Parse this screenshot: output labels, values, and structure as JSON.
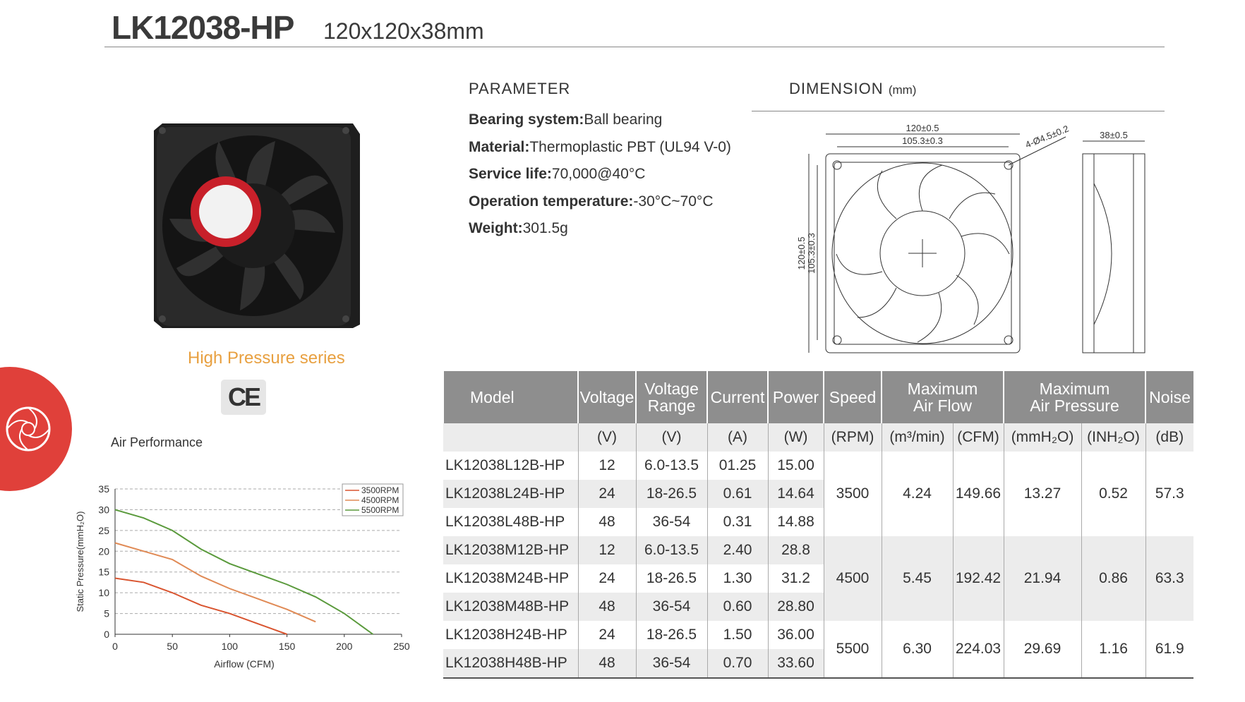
{
  "header": {
    "title": "LK12038-HP",
    "size": "120x120x38mm"
  },
  "series_name": "High Pressure series",
  "certification": "CE",
  "parameter": {
    "heading": "PARAMETER",
    "items": [
      {
        "label": "Bearing system:",
        "value": "Ball bearing"
      },
      {
        "label": "Material:",
        "value": "Thermoplastic PBT (UL94 V-0)"
      },
      {
        "label": "Service life:",
        "value": "70,000@40°C"
      },
      {
        "label": "Operation temperature:",
        "value": "-30°C~70°C"
      },
      {
        "label": "Weight:",
        "value": "301.5g"
      }
    ]
  },
  "dimension": {
    "heading": "DIMENSION",
    "unit": "(mm)",
    "outer": "120±0.5",
    "hole_pitch": "105.3±0.3",
    "holes": "4-Ø4.5±0.2",
    "depth": "38±0.5"
  },
  "table": {
    "header": [
      [
        "Model"
      ],
      [
        "Voltage"
      ],
      [
        "Voltage",
        "Range"
      ],
      [
        "Current"
      ],
      [
        "Power"
      ],
      [
        "Speed"
      ],
      [
        "Maximum",
        "Air Flow"
      ],
      [
        "Maximum",
        "Air Pressure"
      ],
      [
        "Noise"
      ]
    ],
    "units": [
      "(V)",
      "(V)",
      "(A)",
      "(W)",
      "(RPM)",
      "(m³/min)",
      "(CFM)",
      "(mmH₂O)",
      "(INH₂O)",
      "(dB)"
    ],
    "groups": [
      {
        "speed": "3500",
        "airflow_m3": "4.24",
        "airflow_cfm": "149.66",
        "pressure_mmh2o": "13.27",
        "pressure_inh2o": "0.52",
        "noise": "57.3",
        "rows": [
          [
            "LK12038L12B-HP",
            "12",
            "6.0-13.5",
            "01.25",
            "15.00"
          ],
          [
            "LK12038L24B-HP",
            "24",
            "18-26.5",
            "0.61",
            "14.64"
          ],
          [
            "LK12038L48B-HP",
            "48",
            "36-54",
            "0.31",
            "14.88"
          ]
        ]
      },
      {
        "speed": "4500",
        "airflow_m3": "5.45",
        "airflow_cfm": "192.42",
        "pressure_mmh2o": "21.94",
        "pressure_inh2o": "0.86",
        "noise": "63.3",
        "rows": [
          [
            "LK12038M12B-HP",
            "12",
            "6.0-13.5",
            "2.40",
            "28.8"
          ],
          [
            "LK12038M24B-HP",
            "24",
            "18-26.5",
            "1.30",
            "31.2"
          ],
          [
            "LK12038M48B-HP",
            "48",
            "36-54",
            "0.60",
            "28.80"
          ]
        ]
      },
      {
        "speed": "5500",
        "airflow_m3": "6.30",
        "airflow_cfm": "224.03",
        "pressure_mmh2o": "29.69",
        "pressure_inh2o": "1.16",
        "noise": "61.9",
        "rows": [
          [
            "LK12038H24B-HP",
            "24",
            "18-26.5",
            "1.50",
            "36.00"
          ],
          [
            "LK12038H48B-HP",
            "48",
            "36-54",
            "0.70",
            "33.60"
          ]
        ]
      }
    ]
  },
  "chart_data": {
    "type": "line",
    "title": "Air Performance",
    "x_label": "Airflow (CFM)",
    "y_label": "Static Pressure(mmH₂O)",
    "x": [
      0,
      25,
      50,
      75,
      100,
      125,
      150,
      175,
      200,
      225
    ],
    "series": [
      {
        "name": "3500RPM",
        "color": "#d9542f",
        "values": [
          13.5,
          12.5,
          10,
          7,
          5,
          2.5,
          0,
          null,
          null,
          null
        ]
      },
      {
        "name": "4500RPM",
        "color": "#e08a55",
        "values": [
          22,
          20,
          18,
          14,
          11,
          8.5,
          6,
          3,
          null,
          null
        ]
      },
      {
        "name": "5500RPM",
        "color": "#5a9a3c",
        "values": [
          30,
          28,
          25,
          20.5,
          17,
          14.5,
          12,
          9,
          5,
          0
        ]
      }
    ],
    "xlim": [
      0,
      250
    ],
    "xticks": [
      0,
      50,
      100,
      150,
      200,
      250
    ],
    "ylim": [
      0,
      35
    ],
    "yticks": [
      0,
      5,
      10,
      15,
      20,
      25,
      30,
      35
    ],
    "grid": true,
    "legend": "upper right"
  }
}
